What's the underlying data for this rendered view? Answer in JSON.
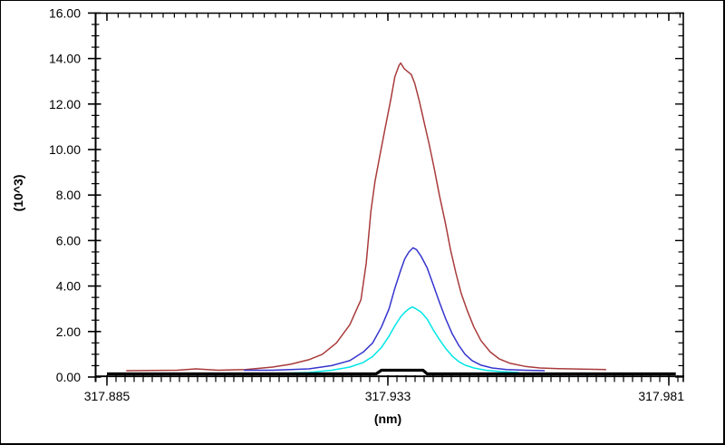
{
  "window": {
    "background": "#ffffff",
    "border_color": "#000000"
  },
  "chart_data": {
    "type": "line",
    "title": "",
    "xlabel": "(nm)",
    "ylabel": "(10^3)",
    "grid": false,
    "legend": null,
    "xlim": [
      317.8831,
      317.9835
    ],
    "ylim": [
      0,
      16
    ],
    "x_ticks": [
      {
        "value": 317.885,
        "label": "317.885"
      },
      {
        "value": 317.933,
        "label": "317.933"
      },
      {
        "value": 317.981,
        "label": "317.981"
      }
    ],
    "y_ticks": [
      {
        "value": 16,
        "label": "16.00"
      },
      {
        "value": 14,
        "label": "14.00"
      },
      {
        "value": 12,
        "label": "12.00"
      },
      {
        "value": 10,
        "label": "10.00"
      },
      {
        "value": 8,
        "label": "8.00"
      },
      {
        "value": 6,
        "label": "6.00"
      },
      {
        "value": 4,
        "label": "4.00"
      },
      {
        "value": 2,
        "label": "2.00"
      },
      {
        "value": 0,
        "label": "0.00"
      }
    ],
    "y_minor_step": 0.5,
    "x_minor_step_nm": 0.0015484,
    "top_tick_step_nm": 0.00192,
    "axis_color": "#000000",
    "series": [
      {
        "name": "trace-dark-red",
        "color": "#A93B3B",
        "width": 1.5,
        "points": [
          [
            317.8883,
            0.28
          ],
          [
            317.897,
            0.3
          ],
          [
            317.9002,
            0.36
          ],
          [
            317.904,
            0.3
          ],
          [
            317.9087,
            0.33
          ],
          [
            317.9133,
            0.44
          ],
          [
            317.9164,
            0.56
          ],
          [
            317.9195,
            0.76
          ],
          [
            317.9218,
            1.0
          ],
          [
            317.9242,
            1.5
          ],
          [
            317.9265,
            2.3
          ],
          [
            317.9284,
            3.4
          ],
          [
            317.9293,
            5.0
          ],
          [
            317.9301,
            7.3
          ],
          [
            317.9308,
            8.6
          ],
          [
            317.9316,
            9.7
          ],
          [
            317.9325,
            10.9
          ],
          [
            317.9335,
            12.2
          ],
          [
            317.9342,
            13.2
          ],
          [
            317.9349,
            13.7
          ],
          [
            317.9352,
            13.8
          ],
          [
            317.9358,
            13.55
          ],
          [
            317.937,
            13.3
          ],
          [
            317.9376,
            12.9
          ],
          [
            317.9384,
            12.1
          ],
          [
            317.9392,
            11.2
          ],
          [
            317.94,
            10.3
          ],
          [
            317.9409,
            9.2
          ],
          [
            317.9418,
            8.0
          ],
          [
            317.9428,
            6.8
          ],
          [
            317.9437,
            5.6
          ],
          [
            317.9446,
            4.6
          ],
          [
            317.9455,
            3.7
          ],
          [
            317.9466,
            2.9
          ],
          [
            317.9477,
            2.2
          ],
          [
            317.9489,
            1.6
          ],
          [
            317.9505,
            1.1
          ],
          [
            317.952,
            0.8
          ],
          [
            317.9539,
            0.6
          ],
          [
            317.9564,
            0.47
          ],
          [
            317.959,
            0.4
          ],
          [
            317.9621,
            0.37
          ],
          [
            317.966,
            0.35
          ],
          [
            317.9703,
            0.33
          ]
        ]
      },
      {
        "name": "trace-blue",
        "color": "#3535CE",
        "width": 1.5,
        "points": [
          [
            317.9084,
            0.3
          ],
          [
            317.9133,
            0.3
          ],
          [
            317.9195,
            0.36
          ],
          [
            317.9234,
            0.5
          ],
          [
            317.9265,
            0.72
          ],
          [
            317.9288,
            1.1
          ],
          [
            317.9304,
            1.5
          ],
          [
            317.9319,
            2.2
          ],
          [
            317.9332,
            3.0
          ],
          [
            317.9342,
            3.9
          ],
          [
            317.9352,
            4.7
          ],
          [
            317.9359,
            5.2
          ],
          [
            317.9366,
            5.5
          ],
          [
            317.9373,
            5.68
          ],
          [
            317.9379,
            5.6
          ],
          [
            317.9387,
            5.3
          ],
          [
            317.9397,
            4.8
          ],
          [
            317.9407,
            4.1
          ],
          [
            317.9418,
            3.3
          ],
          [
            317.9429,
            2.55
          ],
          [
            317.944,
            1.9
          ],
          [
            317.9451,
            1.4
          ],
          [
            317.9462,
            1.0
          ],
          [
            317.9474,
            0.72
          ],
          [
            317.9489,
            0.52
          ],
          [
            317.9508,
            0.4
          ],
          [
            317.9533,
            0.33
          ],
          [
            317.9564,
            0.3
          ],
          [
            317.9598,
            0.28
          ]
        ]
      },
      {
        "name": "trace-cyan",
        "color": "#00E6E6",
        "width": 1.5,
        "points": [
          [
            317.9141,
            0.16
          ],
          [
            317.9195,
            0.2
          ],
          [
            317.9234,
            0.3
          ],
          [
            317.9265,
            0.44
          ],
          [
            317.9288,
            0.64
          ],
          [
            317.9304,
            0.9
          ],
          [
            317.9319,
            1.3
          ],
          [
            317.9332,
            1.8
          ],
          [
            317.9342,
            2.25
          ],
          [
            317.9352,
            2.65
          ],
          [
            317.9359,
            2.85
          ],
          [
            317.9366,
            3.0
          ],
          [
            317.9372,
            3.08
          ],
          [
            317.9378,
            3.0
          ],
          [
            317.9387,
            2.85
          ],
          [
            317.9397,
            2.55
          ],
          [
            317.9407,
            2.1
          ],
          [
            317.9418,
            1.65
          ],
          [
            317.9429,
            1.25
          ],
          [
            317.944,
            0.92
          ],
          [
            317.9451,
            0.68
          ],
          [
            317.9462,
            0.52
          ],
          [
            317.9477,
            0.4
          ],
          [
            317.9497,
            0.3
          ],
          [
            317.9523,
            0.24
          ],
          [
            317.9554,
            0.2
          ]
        ]
      },
      {
        "name": "trace-black-baseline",
        "color": "#000000",
        "width": 3.2,
        "points": [
          [
            317.885,
            0.14
          ],
          [
            317.931,
            0.14
          ],
          [
            317.9319,
            0.3
          ],
          [
            317.939,
            0.3
          ],
          [
            317.9397,
            0.14
          ],
          [
            317.9822,
            0.14
          ]
        ]
      }
    ]
  }
}
